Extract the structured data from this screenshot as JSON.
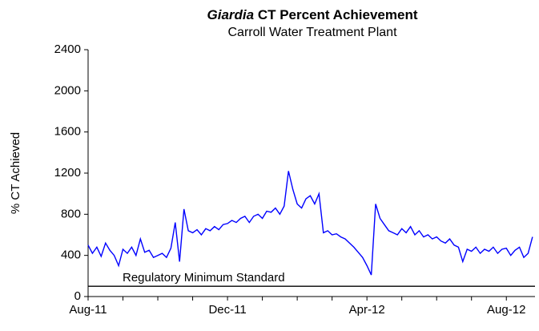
{
  "chart_data": {
    "type": "line",
    "title": {
      "italic": "Giardia",
      "rest": "CT Percent Achievement"
    },
    "subtitle": "Carroll Water Treatment Plant",
    "y_label": "% CT Achieved",
    "categories": [
      "Aug-11",
      null,
      null,
      null,
      null,
      null,
      null,
      null,
      null,
      null,
      null,
      null,
      null,
      null,
      null,
      null,
      null,
      null,
      null,
      null,
      null,
      null,
      null,
      null,
      null,
      null,
      null,
      null,
      null,
      null,
      null,
      null,
      "Dec-11",
      null,
      null,
      null,
      null,
      null,
      null,
      null,
      null,
      null,
      null,
      null,
      null,
      null,
      null,
      null,
      null,
      null,
      null,
      null,
      null,
      null,
      null,
      null,
      null,
      null,
      null,
      null,
      null,
      null,
      null,
      null,
      "Apr-12",
      null,
      null,
      null,
      null,
      null,
      null,
      null,
      null,
      null,
      null,
      null,
      null,
      null,
      null,
      null,
      null,
      null,
      null,
      null,
      null,
      null,
      null,
      null,
      null,
      null,
      null,
      null,
      null,
      null,
      null,
      null,
      "Aug-12",
      null,
      null,
      null,
      null,
      null,
      null
    ],
    "series": [
      {
        "color": "#0000ff",
        "values": [
          500,
          420,
          480,
          390,
          520,
          450,
          400,
          300,
          460,
          420,
          480,
          400,
          560,
          430,
          450,
          380,
          400,
          420,
          380,
          470,
          720,
          340,
          850,
          640,
          620,
          650,
          600,
          660,
          640,
          680,
          650,
          700,
          710,
          740,
          720,
          760,
          780,
          720,
          780,
          800,
          760,
          830,
          820,
          860,
          800,
          880,
          1220,
          1040,
          900,
          860,
          950,
          980,
          900,
          1000,
          620,
          640,
          600,
          610,
          580,
          560,
          520,
          480,
          430,
          380,
          300,
          210,
          900,
          760,
          700,
          640,
          620,
          600,
          660,
          620,
          680,
          600,
          640,
          580,
          600,
          560,
          580,
          540,
          520,
          560,
          500,
          480,
          340,
          460,
          440,
          480,
          420,
          460,
          440,
          480,
          420,
          460,
          470,
          400,
          450,
          480,
          380,
          420,
          580
        ]
      }
    ],
    "reference_line": {
      "value": 100,
      "label": "Regulatory Minimum Standard",
      "color": "#000000"
    },
    "ylim": [
      0,
      2400
    ],
    "yticks": [
      0,
      400,
      800,
      1200,
      1600,
      2000,
      2400
    ],
    "grid": false
  }
}
